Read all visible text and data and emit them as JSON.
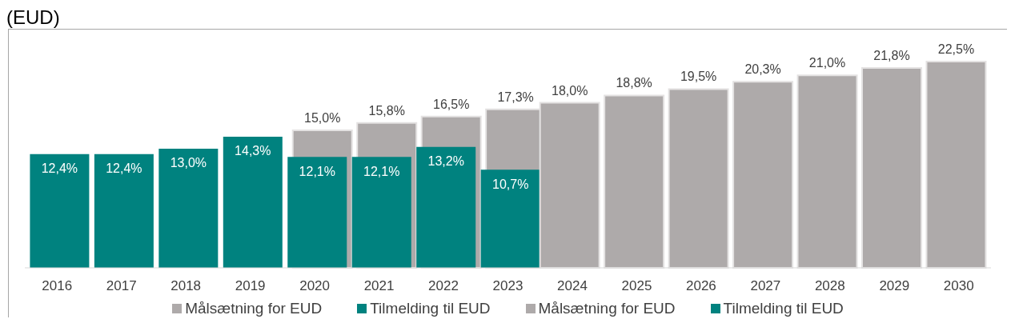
{
  "chart_data": {
    "type": "bar",
    "title": "(EUD)",
    "categories": [
      "2016",
      "2017",
      "2018",
      "2019",
      "2020",
      "2021",
      "2022",
      "2023",
      "2024",
      "2025",
      "2026",
      "2027",
      "2028",
      "2029",
      "2030"
    ],
    "series": [
      {
        "name": "Målsætning for EUD",
        "color": "#aeaaaa",
        "values": [
          null,
          null,
          null,
          null,
          15.0,
          15.8,
          16.5,
          17.3,
          null,
          null,
          null,
          null,
          null,
          null,
          null
        ],
        "value_labels": [
          null,
          null,
          null,
          null,
          "15,0%",
          "15,8%",
          "16,5%",
          "17,3%",
          null,
          null,
          null,
          null,
          null,
          null,
          null
        ]
      },
      {
        "name": "Tilmelding til EUD",
        "color": "#00827f",
        "values": [
          12.4,
          12.4,
          13.0,
          14.3,
          12.1,
          12.1,
          13.2,
          10.7,
          null,
          null,
          null,
          null,
          null,
          null,
          null
        ],
        "value_labels": [
          "12,4%",
          "12,4%",
          "13,0%",
          "14,3%",
          "12,1%",
          "12,1%",
          "13,2%",
          "10,7%",
          null,
          null,
          null,
          null,
          null,
          null,
          null
        ]
      },
      {
        "name": "Målsætning for EUD",
        "color": "#aeaaaa",
        "values": [
          null,
          null,
          null,
          null,
          null,
          null,
          null,
          null,
          18.0,
          18.8,
          19.5,
          20.3,
          21.0,
          21.8,
          22.5
        ],
        "value_labels": [
          null,
          null,
          null,
          null,
          null,
          null,
          null,
          null,
          "18,0%",
          "18,8%",
          "19,5%",
          "20,3%",
          "21,0%",
          "21,8%",
          "22,5%"
        ]
      },
      {
        "name": "Tilmelding til EUD",
        "color": "#00827f",
        "values": [
          null,
          null,
          null,
          null,
          null,
          null,
          null,
          null,
          null,
          null,
          null,
          null,
          null,
          null,
          null
        ]
      }
    ],
    "legend": "bottom",
    "grid": false
  }
}
